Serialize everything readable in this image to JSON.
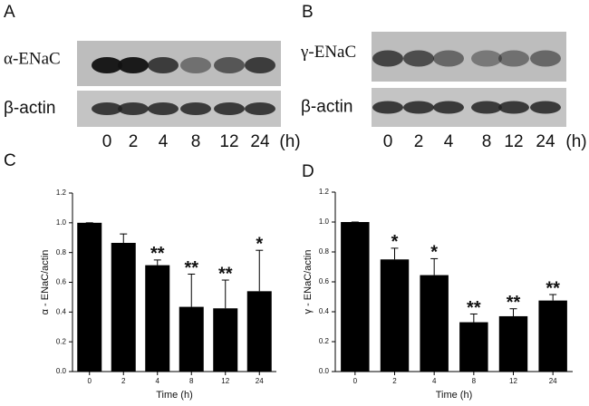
{
  "blots": {
    "a": {
      "label": "A",
      "protein": "α-ENaC",
      "control": "β-actin",
      "times": [
        "0",
        "2",
        "4",
        "8",
        "12",
        "24"
      ],
      "unit": "(h)"
    },
    "b": {
      "label": "B",
      "protein": "γ-ENaC",
      "control": "β-actin",
      "times": [
        "0",
        "2",
        "4",
        "8",
        "12",
        "24"
      ],
      "unit": "(h)"
    }
  },
  "chart_data": [
    {
      "type": "bar",
      "panel": "C",
      "xlabel": "Time (h)",
      "ylabel": "α - ENaC/actin",
      "categories": [
        "0",
        "2",
        "4",
        "8",
        "12",
        "24"
      ],
      "values": [
        1.0,
        0.865,
        0.715,
        0.435,
        0.425,
        0.54
      ],
      "errors": [
        0,
        0.06,
        0.035,
        0.22,
        0.19,
        0.275
      ],
      "significance": [
        null,
        null,
        "**",
        "**",
        "**",
        "*"
      ],
      "color": "#000000",
      "ylim": [
        0,
        1.2
      ],
      "yticks": [
        {
          "value": 0,
          "label": "0.0"
        },
        0.2,
        0.4,
        0.6,
        0.8,
        {
          "value": 1,
          "label": "1.0"
        },
        1.2
      ]
    },
    {
      "type": "bar",
      "panel": "D",
      "xlabel": "Time (h)",
      "ylabel": "γ - ENaC/actin",
      "categories": [
        "0",
        "2",
        "4",
        "8",
        "12",
        "24"
      ],
      "values": [
        1.0,
        0.75,
        0.645,
        0.33,
        0.37,
        0.475
      ],
      "errors": [
        0,
        0.075,
        0.11,
        0.055,
        0.05,
        0.04
      ],
      "significance": [
        null,
        "*",
        "*",
        "**",
        "**",
        "**"
      ],
      "color": "#000000",
      "ylim": [
        0,
        1.2
      ],
      "yticks": [
        {
          "value": 0,
          "label": "0.0"
        },
        0.2,
        0.4,
        0.6,
        0.8,
        {
          "value": 1,
          "label": "1.0"
        },
        1.2
      ]
    }
  ]
}
